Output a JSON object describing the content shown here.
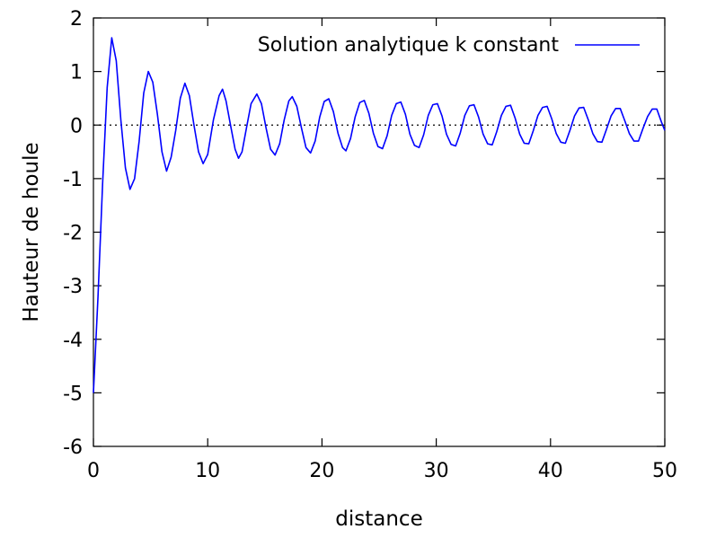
{
  "chart_data": {
    "type": "line",
    "title": "",
    "xlabel": "distance",
    "ylabel": "Hauteur de houle",
    "xlim": [
      0,
      50
    ],
    "ylim": [
      -6,
      2
    ],
    "x_ticks": [
      "0",
      "10",
      "20",
      "30",
      "40",
      "50"
    ],
    "y_ticks": [
      "2",
      "1",
      "0",
      "-1",
      "-2",
      "-3",
      "-4",
      "-5",
      "-6"
    ],
    "grid": false,
    "legend_position": "top-right",
    "reference_line": {
      "y": 0,
      "style": "dotted"
    },
    "series": [
      {
        "name": "Solution analytique k constant",
        "color": "#0000ff",
        "points": [
          [
            0,
            -5.0
          ],
          [
            0.4,
            -3.2
          ],
          [
            0.8,
            -1.1
          ],
          [
            1.2,
            0.7
          ],
          [
            1.6,
            1.63
          ],
          [
            2.0,
            1.2
          ],
          [
            2.4,
            0.1
          ],
          [
            2.8,
            -0.8
          ],
          [
            3.2,
            -1.2
          ],
          [
            3.6,
            -1.0
          ],
          [
            4.0,
            -0.3
          ],
          [
            4.4,
            0.6
          ],
          [
            4.8,
            1.0
          ],
          [
            5.2,
            0.8
          ],
          [
            5.6,
            0.2
          ],
          [
            6.0,
            -0.5
          ],
          [
            6.4,
            -0.86
          ],
          [
            6.8,
            -0.6
          ],
          [
            7.2,
            -0.1
          ],
          [
            7.6,
            0.5
          ],
          [
            8.0,
            0.78
          ],
          [
            8.4,
            0.55
          ],
          [
            8.8,
            0.0
          ],
          [
            9.2,
            -0.5
          ],
          [
            9.6,
            -0.72
          ],
          [
            10.0,
            -0.55
          ],
          [
            10.5,
            0.1
          ],
          [
            11.0,
            0.55
          ],
          [
            11.3,
            0.67
          ],
          [
            11.6,
            0.45
          ],
          [
            12.0,
            0.0
          ],
          [
            12.4,
            -0.45
          ],
          [
            12.7,
            -0.62
          ],
          [
            13.0,
            -0.5
          ],
          [
            13.4,
            -0.05
          ],
          [
            13.8,
            0.4
          ],
          [
            14.3,
            0.58
          ],
          [
            14.7,
            0.4
          ],
          [
            15.1,
            -0.05
          ],
          [
            15.5,
            -0.45
          ],
          [
            15.9,
            -0.56
          ],
          [
            16.3,
            -0.35
          ],
          [
            16.7,
            0.1
          ],
          [
            17.1,
            0.45
          ],
          [
            17.4,
            0.53
          ],
          [
            17.8,
            0.35
          ],
          [
            18.2,
            -0.05
          ],
          [
            18.6,
            -0.42
          ],
          [
            19.0,
            -0.52
          ],
          [
            19.4,
            -0.3
          ],
          [
            19.8,
            0.15
          ],
          [
            20.2,
            0.44
          ],
          [
            20.6,
            0.49
          ],
          [
            21.0,
            0.25
          ],
          [
            21.4,
            -0.15
          ],
          [
            21.8,
            -0.42
          ],
          [
            22.1,
            -0.48
          ],
          [
            22.5,
            -0.25
          ],
          [
            22.9,
            0.15
          ],
          [
            23.3,
            0.42
          ],
          [
            23.7,
            0.46
          ],
          [
            24.1,
            0.22
          ],
          [
            24.5,
            -0.15
          ],
          [
            24.9,
            -0.4
          ],
          [
            25.3,
            -0.44
          ],
          [
            25.7,
            -0.2
          ],
          [
            26.1,
            0.18
          ],
          [
            26.5,
            0.4
          ],
          [
            26.9,
            0.43
          ],
          [
            27.3,
            0.2
          ],
          [
            27.7,
            -0.17
          ],
          [
            28.1,
            -0.38
          ],
          [
            28.5,
            -0.42
          ],
          [
            28.9,
            -0.18
          ],
          [
            29.3,
            0.18
          ],
          [
            29.7,
            0.38
          ],
          [
            30.1,
            0.4
          ],
          [
            30.5,
            0.17
          ],
          [
            30.9,
            -0.17
          ],
          [
            31.3,
            -0.36
          ],
          [
            31.7,
            -0.39
          ],
          [
            32.1,
            -0.15
          ],
          [
            32.5,
            0.18
          ],
          [
            32.9,
            0.36
          ],
          [
            33.3,
            0.38
          ],
          [
            33.7,
            0.15
          ],
          [
            34.1,
            -0.17
          ],
          [
            34.5,
            -0.35
          ],
          [
            34.9,
            -0.37
          ],
          [
            35.3,
            -0.12
          ],
          [
            35.7,
            0.18
          ],
          [
            36.1,
            0.35
          ],
          [
            36.5,
            0.37
          ],
          [
            36.9,
            0.13
          ],
          [
            37.3,
            -0.17
          ],
          [
            37.7,
            -0.34
          ],
          [
            38.1,
            -0.35
          ],
          [
            38.5,
            -0.1
          ],
          [
            38.9,
            0.18
          ],
          [
            39.3,
            0.33
          ],
          [
            39.7,
            0.35
          ],
          [
            40.1,
            0.12
          ],
          [
            40.5,
            -0.16
          ],
          [
            40.9,
            -0.32
          ],
          [
            41.3,
            -0.34
          ],
          [
            41.7,
            -0.1
          ],
          [
            42.1,
            0.17
          ],
          [
            42.5,
            0.32
          ],
          [
            42.9,
            0.33
          ],
          [
            43.3,
            0.1
          ],
          [
            43.7,
            -0.16
          ],
          [
            44.1,
            -0.31
          ],
          [
            44.5,
            -0.32
          ],
          [
            44.9,
            -0.08
          ],
          [
            45.3,
            0.17
          ],
          [
            45.7,
            0.31
          ],
          [
            46.1,
            0.31
          ],
          [
            46.5,
            0.08
          ],
          [
            46.9,
            -0.16
          ],
          [
            47.3,
            -0.3
          ],
          [
            47.7,
            -0.3
          ],
          [
            48.1,
            -0.06
          ],
          [
            48.5,
            0.16
          ],
          [
            48.9,
            0.3
          ],
          [
            49.3,
            0.3
          ],
          [
            49.7,
            0.06
          ],
          [
            50.0,
            -0.1
          ]
        ]
      }
    ]
  }
}
